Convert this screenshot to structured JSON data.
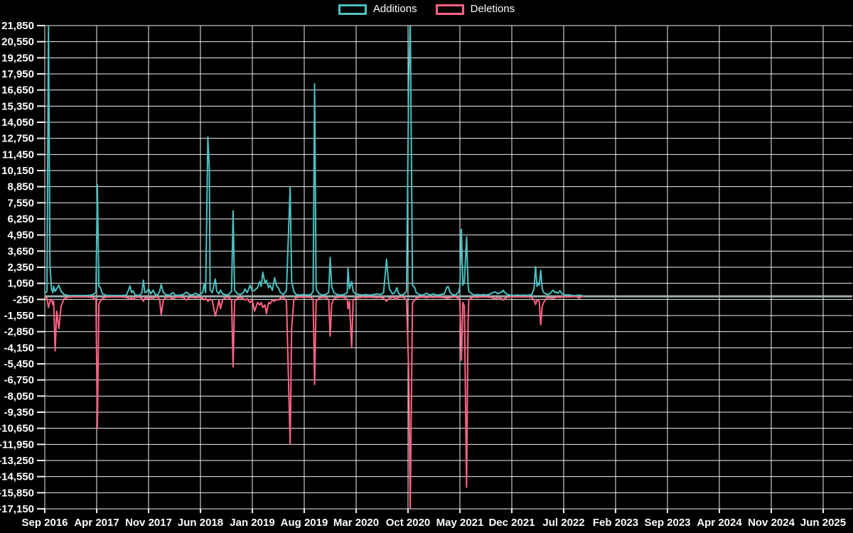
{
  "legend": {
    "items": [
      {
        "label": "Additions",
        "color": "#4bc0c0"
      },
      {
        "label": "Deletions",
        "color": "#ff6384"
      }
    ]
  },
  "colors": {
    "background": "#000000",
    "grid": "#f0f0f0",
    "zero_line": "#9fadad",
    "text": "#ffffff",
    "additions": "#4bc0c0",
    "deletions": "#ff6384"
  },
  "chart_data": {
    "type": "line",
    "title": "",
    "legend_position": "top",
    "grid": true,
    "x_axis": {
      "unit": "months since Sep 2016",
      "tick_interval_months": 7,
      "tick_labels": [
        "Sep 2016",
        "Apr 2017",
        "Nov 2017",
        "Jun 2018",
        "Jan 2019",
        "Aug 2019",
        "Mar 2020",
        "Oct 2020",
        "May 2021",
        "Dec 2021",
        "Jul 2022",
        "Feb 2023",
        "Sep 2023",
        "Apr 2024",
        "Nov 2024",
        "Jun 2025"
      ]
    },
    "y_axis": {
      "min": -17150,
      "max": 21850,
      "step": 1300,
      "ticks": [
        21850,
        20550,
        19250,
        17950,
        16650,
        15350,
        14050,
        12750,
        11450,
        10150,
        8850,
        7550,
        6250,
        4950,
        3650,
        2350,
        1050,
        -250,
        -1550,
        -2850,
        -4150,
        -5450,
        -6750,
        -8050,
        -9350,
        -10650,
        -11950,
        -13250,
        -14550,
        -15850,
        -17150
      ]
    },
    "series": [
      {
        "name": "Additions",
        "color": "#4bc0c0"
      },
      {
        "name": "Deletions",
        "color": "#ff6384"
      }
    ],
    "points_format": [
      "month_offset",
      "additions",
      "deletions"
    ],
    "clip_note": "spikes at 0.5 and 49.3 months exceed the y-axis max and are clipped at the plot top; data ends ~72.6 months (Aug 2022)",
    "points": [
      [
        0,
        250,
        -100
      ],
      [
        0.3,
        400,
        -150
      ],
      [
        0.5,
        21900,
        -900
      ],
      [
        0.7,
        2500,
        -400
      ],
      [
        0.9,
        600,
        -250
      ],
      [
        1.1,
        300,
        -700
      ],
      [
        1.2,
        800,
        -400
      ],
      [
        1.4,
        400,
        -4400
      ],
      [
        1.6,
        600,
        -1200
      ],
      [
        1.9,
        900,
        -2600
      ],
      [
        2.2,
        400,
        -800
      ],
      [
        2.6,
        150,
        -200
      ],
      [
        3.1,
        80,
        -80
      ],
      [
        3.5,
        60,
        -50
      ],
      [
        4.5,
        60,
        -50
      ],
      [
        5.5,
        60,
        -50
      ],
      [
        6.4,
        100,
        -80
      ],
      [
        6.9,
        300,
        -250
      ],
      [
        7.1,
        9000,
        -10650
      ],
      [
        7.3,
        800,
        -600
      ],
      [
        7.5,
        700,
        -400
      ],
      [
        7.8,
        200,
        -150
      ],
      [
        8.3,
        80,
        -60
      ],
      [
        9.3,
        60,
        -50
      ],
      [
        10.3,
        60,
        -50
      ],
      [
        11,
        100,
        -80
      ],
      [
        11.3,
        500,
        -150
      ],
      [
        11.5,
        850,
        -250
      ],
      [
        11.7,
        300,
        -120
      ],
      [
        11.9,
        450,
        -250
      ],
      [
        12.2,
        100,
        -80
      ],
      [
        12.8,
        80,
        -60
      ],
      [
        13.1,
        300,
        -150
      ],
      [
        13.3,
        1300,
        -400
      ],
      [
        13.5,
        300,
        -150
      ],
      [
        13.7,
        350,
        -120
      ],
      [
        14,
        600,
        -200
      ],
      [
        14.3,
        200,
        -100
      ],
      [
        14.6,
        500,
        -150
      ],
      [
        14.9,
        150,
        -80
      ],
      [
        15.2,
        100,
        -60
      ],
      [
        15.5,
        400,
        -250
      ],
      [
        15.7,
        950,
        -1500
      ],
      [
        16,
        300,
        -300
      ],
      [
        16.3,
        150,
        -100
      ],
      [
        16.8,
        80,
        -60
      ],
      [
        17.3,
        300,
        -200
      ],
      [
        17.6,
        100,
        -80
      ],
      [
        18.1,
        80,
        -60
      ],
      [
        18.7,
        150,
        -100
      ],
      [
        19.1,
        350,
        -300
      ],
      [
        19.5,
        150,
        -100
      ],
      [
        19.9,
        100,
        -80
      ],
      [
        20.3,
        250,
        -120
      ],
      [
        20.8,
        100,
        -80
      ],
      [
        21.3,
        300,
        -150
      ],
      [
        21.5,
        1000,
        -300
      ],
      [
        21.7,
        300,
        -150
      ],
      [
        22,
        12850,
        -400
      ],
      [
        22.2,
        10300,
        -300
      ],
      [
        22.3,
        500,
        -200
      ],
      [
        22.6,
        300,
        -350
      ],
      [
        23,
        1400,
        -1600
      ],
      [
        23.2,
        400,
        -1150
      ],
      [
        23.5,
        200,
        -300
      ],
      [
        23.7,
        500,
        -1000
      ],
      [
        24,
        200,
        -250
      ],
      [
        24.5,
        100,
        -80
      ],
      [
        24.8,
        150,
        -100
      ],
      [
        25.2,
        400,
        -300
      ],
      [
        25.4,
        6900,
        -5700
      ],
      [
        25.6,
        500,
        -400
      ],
      [
        26,
        200,
        -150
      ],
      [
        26.4,
        150,
        -100
      ],
      [
        26.8,
        300,
        -200
      ],
      [
        27,
        600,
        -300
      ],
      [
        27.3,
        300,
        -200
      ],
      [
        27.7,
        900,
        -500
      ],
      [
        28,
        400,
        -300
      ],
      [
        28.3,
        500,
        -1200
      ],
      [
        28.7,
        700,
        -500
      ],
      [
        29,
        1200,
        -700
      ],
      [
        29.2,
        800,
        -500
      ],
      [
        29.4,
        1950,
        -900
      ],
      [
        29.7,
        1100,
        -700
      ],
      [
        29.9,
        1300,
        -1400
      ],
      [
        30.2,
        700,
        -500
      ],
      [
        30.4,
        900,
        -600
      ],
      [
        30.7,
        500,
        -300
      ],
      [
        31,
        1500,
        -400
      ],
      [
        31.3,
        800,
        -250
      ],
      [
        31.5,
        700,
        -300
      ],
      [
        31.8,
        300,
        -150
      ],
      [
        32.2,
        150,
        -80
      ],
      [
        32.6,
        500,
        -400
      ],
      [
        33.1,
        8850,
        -11900
      ],
      [
        33.3,
        1200,
        -2500
      ],
      [
        33.6,
        400,
        -300
      ],
      [
        33.9,
        150,
        -100
      ],
      [
        34.4,
        100,
        -60
      ],
      [
        34.9,
        150,
        -80
      ],
      [
        35.4,
        100,
        -60
      ],
      [
        35.9,
        150,
        -80
      ],
      [
        36.2,
        400,
        -250
      ],
      [
        36.4,
        17150,
        -7100
      ],
      [
        36.6,
        600,
        -400
      ],
      [
        37,
        200,
        -150
      ],
      [
        37.4,
        100,
        -80
      ],
      [
        37.9,
        150,
        -100
      ],
      [
        38.3,
        300,
        -250
      ],
      [
        38.5,
        3150,
        -3200
      ],
      [
        38.7,
        800,
        -600
      ],
      [
        39,
        300,
        -200
      ],
      [
        39.4,
        150,
        -100
      ],
      [
        39.9,
        100,
        -60
      ],
      [
        40.4,
        150,
        -80
      ],
      [
        40.8,
        300,
        -250
      ],
      [
        40.9,
        2300,
        -1000
      ],
      [
        41.1,
        600,
        -400
      ],
      [
        41.4,
        1200,
        -4100
      ],
      [
        41.6,
        400,
        -300
      ],
      [
        41.9,
        200,
        -150
      ],
      [
        42.4,
        150,
        -100
      ],
      [
        42.9,
        100,
        -60
      ],
      [
        43.3,
        150,
        -80
      ],
      [
        43.8,
        100,
        -60
      ],
      [
        44.4,
        150,
        -80
      ],
      [
        44.8,
        200,
        -100
      ],
      [
        45.3,
        150,
        -80
      ],
      [
        45.7,
        300,
        -150
      ],
      [
        46.1,
        3000,
        -400
      ],
      [
        46.3,
        1600,
        -250
      ],
      [
        46.5,
        600,
        -150
      ],
      [
        46.9,
        200,
        -80
      ],
      [
        47.2,
        300,
        -120
      ],
      [
        47.5,
        700,
        -250
      ],
      [
        47.7,
        250,
        -100
      ],
      [
        48,
        100,
        -60
      ],
      [
        48.4,
        150,
        -80
      ],
      [
        48.8,
        400,
        -300
      ],
      [
        49.1,
        17400,
        -6100
      ],
      [
        49.3,
        22500,
        -17100
      ],
      [
        49.6,
        900,
        -500
      ],
      [
        49.9,
        700,
        -300
      ],
      [
        50.1,
        300,
        -150
      ],
      [
        50.5,
        150,
        -80
      ],
      [
        51,
        100,
        -60
      ],
      [
        51.5,
        250,
        -100
      ],
      [
        52,
        100,
        -60
      ],
      [
        52.4,
        200,
        -80
      ],
      [
        52.9,
        100,
        -60
      ],
      [
        53.4,
        150,
        -80
      ],
      [
        53.9,
        200,
        -100
      ],
      [
        54.2,
        700,
        -150
      ],
      [
        54.4,
        800,
        -150
      ],
      [
        54.7,
        300,
        -100
      ],
      [
        55,
        150,
        -60
      ],
      [
        55.4,
        100,
        -50
      ],
      [
        55.8,
        300,
        -150
      ],
      [
        56,
        800,
        -400
      ],
      [
        56.2,
        5400,
        -5150
      ],
      [
        56.4,
        900,
        -500
      ],
      [
        56.6,
        1200,
        -800
      ],
      [
        56.9,
        4800,
        -15400
      ],
      [
        57.1,
        900,
        -2000
      ],
      [
        57.2,
        400,
        -300
      ],
      [
        57.6,
        200,
        -100
      ],
      [
        58,
        100,
        -60
      ],
      [
        58.4,
        150,
        -80
      ],
      [
        58.8,
        100,
        -50
      ],
      [
        59.2,
        150,
        -60
      ],
      [
        59.5,
        100,
        -50
      ],
      [
        59.9,
        150,
        -60
      ],
      [
        60.3,
        250,
        -100
      ],
      [
        60.6,
        350,
        -150
      ],
      [
        60.8,
        350,
        -200
      ],
      [
        61.1,
        200,
        -100
      ],
      [
        61.4,
        300,
        -150
      ],
      [
        61.7,
        350,
        -200
      ],
      [
        61.8,
        500,
        -300
      ],
      [
        62.1,
        300,
        -150
      ],
      [
        62.4,
        150,
        -80
      ],
      [
        62.8,
        100,
        -50
      ],
      [
        63.3,
        80,
        -40
      ],
      [
        63.8,
        100,
        -50
      ],
      [
        64.2,
        80,
        -40
      ],
      [
        64.7,
        100,
        -50
      ],
      [
        65.2,
        80,
        -40
      ],
      [
        65.7,
        150,
        -100
      ],
      [
        66,
        600,
        -300
      ],
      [
        66.2,
        2400,
        -650
      ],
      [
        66.4,
        800,
        -300
      ],
      [
        66.5,
        1100,
        -300
      ],
      [
        66.7,
        900,
        -400
      ],
      [
        66.9,
        2100,
        -2300
      ],
      [
        67.1,
        600,
        -800
      ],
      [
        67.3,
        300,
        -500
      ],
      [
        67.6,
        200,
        -200
      ],
      [
        67.9,
        150,
        -100
      ],
      [
        68.2,
        250,
        -120
      ],
      [
        68.4,
        400,
        -150
      ],
      [
        68.6,
        500,
        -150
      ],
      [
        68.8,
        300,
        -100
      ],
      [
        69,
        350,
        -80
      ],
      [
        69.2,
        250,
        -60
      ],
      [
        69.5,
        450,
        -100
      ],
      [
        69.7,
        250,
        -60
      ],
      [
        70,
        150,
        -50
      ],
      [
        70.3,
        100,
        -40
      ],
      [
        70.7,
        120,
        -50
      ],
      [
        71.1,
        80,
        -30
      ],
      [
        71.4,
        60,
        -20
      ],
      [
        71.8,
        80,
        -40
      ],
      [
        72.1,
        100,
        -150
      ],
      [
        72.4,
        60,
        -30
      ],
      [
        72.6,
        40,
        -20
      ]
    ]
  }
}
